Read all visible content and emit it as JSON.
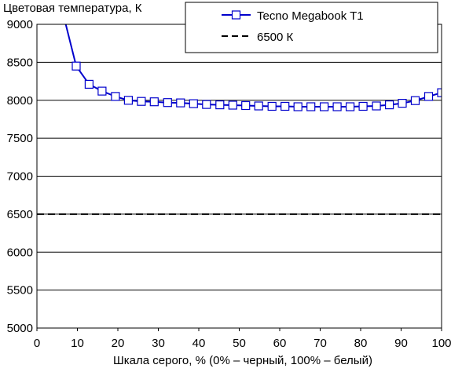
{
  "chart_data": {
    "type": "line",
    "title": "",
    "ylabel": "Цветовая температура, К",
    "xlabel": "Шкала серого, % (0% – черный, 100% – белый)",
    "xlim": [
      0,
      100
    ],
    "ylim": [
      5000,
      9000
    ],
    "xticks": [
      0,
      10,
      20,
      30,
      40,
      50,
      60,
      70,
      80,
      90,
      100
    ],
    "yticks": [
      5000,
      5500,
      6000,
      6500,
      7000,
      7500,
      8000,
      8500,
      9000
    ],
    "grid": "horizontal",
    "legend_position": "top-right",
    "series": [
      {
        "name": "Tecno Megabook T1",
        "color": "#0000cc",
        "marker": "square",
        "line_style": "solid",
        "x": [
          6.9,
          9.7,
          12.9,
          16.1,
          19.4,
          22.6,
          25.8,
          29.0,
          32.3,
          35.5,
          38.7,
          41.9,
          45.2,
          48.4,
          51.6,
          54.8,
          58.1,
          61.3,
          64.5,
          67.7,
          71.0,
          74.2,
          77.4,
          80.6,
          83.9,
          87.1,
          90.3,
          93.5,
          96.8,
          100
        ],
        "y": [
          9050,
          8450,
          8210,
          8120,
          8050,
          8000,
          7985,
          7980,
          7970,
          7965,
          7955,
          7945,
          7940,
          7935,
          7930,
          7925,
          7920,
          7920,
          7915,
          7915,
          7915,
          7915,
          7915,
          7920,
          7925,
          7940,
          7960,
          7995,
          8050,
          8100
        ],
        "markers_start_index": 1
      },
      {
        "name": "6500 К",
        "color": "#000000",
        "line_style": "dashed",
        "x": [
          0,
          100
        ],
        "y": [
          6500,
          6500
        ]
      }
    ]
  }
}
